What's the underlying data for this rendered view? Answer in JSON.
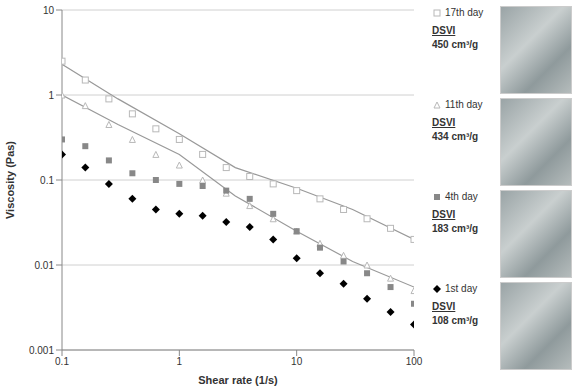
{
  "chart_data": {
    "type": "scatter",
    "x_label": "Shear rate (1/s)",
    "y_label": "Viscosity (Pas)",
    "log": true,
    "grid": true,
    "legend": "right",
    "xlim": [
      0.1,
      100
    ],
    "xticks": [
      0.1,
      1,
      10,
      100
    ],
    "ylim": [
      0.001,
      10
    ],
    "yticks": [
      0.001,
      0.01,
      0.1,
      1,
      10
    ],
    "x": [
      0.1,
      0.158,
      0.251,
      0.398,
      0.631,
      1,
      1.58,
      2.51,
      3.98,
      6.31,
      10,
      15.8,
      25.1,
      39.8,
      63.1,
      100
    ],
    "series": [
      {
        "name": "17th day",
        "color": "#b8b8b8",
        "marker": "square-open",
        "note_title": "DSVI",
        "note": "450 cm³/g",
        "values": [
          2.5,
          1.5,
          0.9,
          0.6,
          0.4,
          0.3,
          0.2,
          0.14,
          0.11,
          0.09,
          0.075,
          0.06,
          0.045,
          0.035,
          0.027,
          0.02
        ],
        "fit": {
          "color": "#999999",
          "line_style": "solid",
          "x": [
            0.1,
            0.3,
            1,
            3,
            10,
            30,
            100
          ],
          "values": [
            2.3,
            0.9,
            0.35,
            0.14,
            0.08,
            0.045,
            0.02
          ]
        }
      },
      {
        "name": "11th day",
        "color": "#b8b8b8",
        "marker": "triangle-open",
        "note_title": "DSVI",
        "note": "434 cm³/g",
        "values": [
          1.0,
          0.75,
          0.45,
          0.3,
          0.2,
          0.15,
          0.1,
          0.07,
          0.05,
          0.035,
          0.025,
          0.018,
          0.013,
          0.01,
          0.007,
          0.005
        ],
        "fit": {
          "color": "#999999",
          "line_style": "solid",
          "x": [
            0.1,
            0.3,
            1,
            3,
            10,
            30,
            100
          ],
          "values": [
            1.0,
            0.45,
            0.2,
            0.065,
            0.025,
            0.011,
            0.0055
          ]
        }
      },
      {
        "name": "4th day",
        "color": "#888888",
        "marker": "square",
        "note_title": "DSVI",
        "note": "183 cm³/g",
        "values": [
          0.3,
          0.25,
          0.17,
          0.12,
          0.1,
          0.09,
          0.085,
          0.075,
          0.06,
          0.04,
          0.025,
          0.016,
          0.011,
          0.008,
          0.0055,
          0.0035
        ]
      },
      {
        "name": "1st day",
        "color": "#000000",
        "marker": "diamond",
        "note_title": "DSVI",
        "note": "108 cm³/g",
        "values": [
          0.2,
          0.14,
          0.09,
          0.06,
          0.045,
          0.04,
          0.038,
          0.032,
          0.028,
          0.02,
          0.012,
          0.008,
          0.006,
          0.004,
          0.0028,
          0.002
        ]
      }
    ]
  }
}
